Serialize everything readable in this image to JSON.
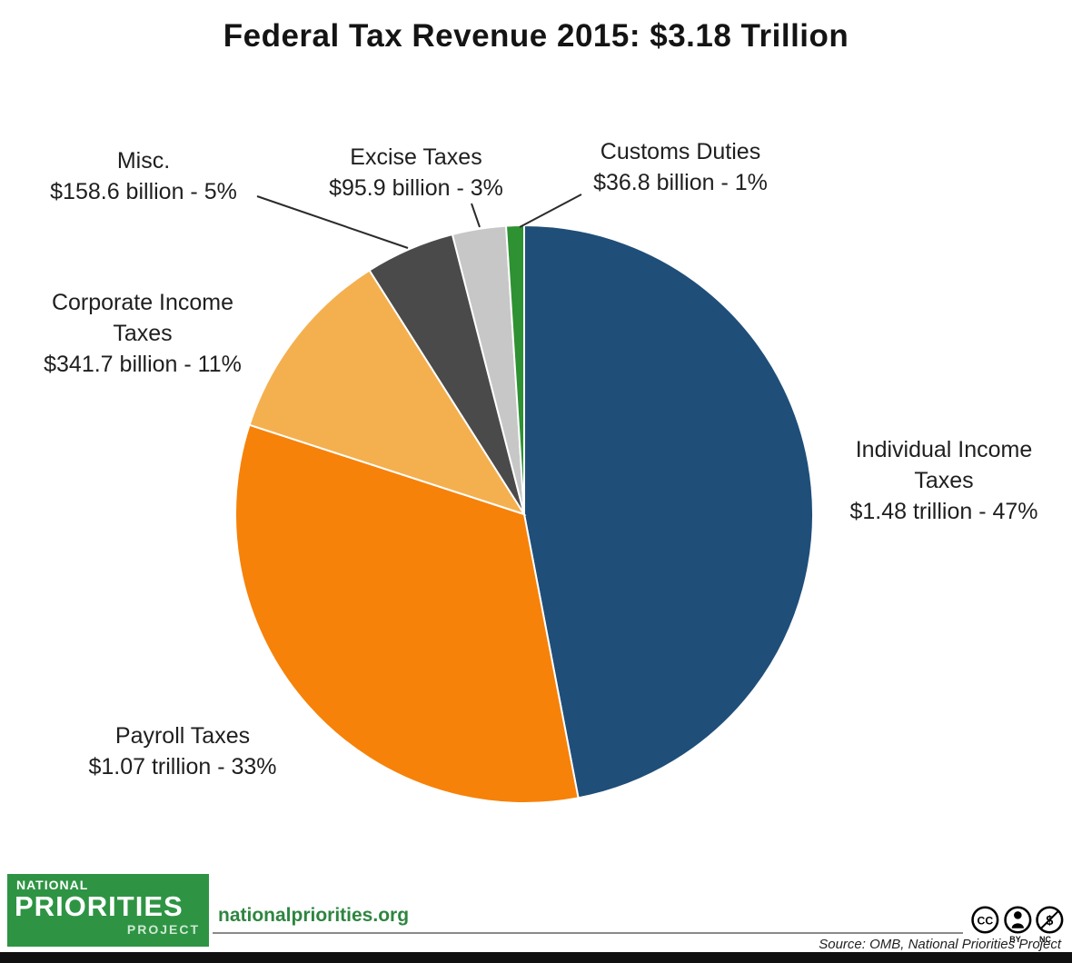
{
  "chart_data": {
    "type": "pie",
    "title": "Federal Tax Revenue 2015: $3.18 Trillion",
    "start_angle_deg": 0,
    "direction": "clockwise",
    "total_label": "$3.18 Trillion",
    "slices": [
      {
        "label": "Individual Income Taxes",
        "value_label": "$1.48 trillion - 47%",
        "percent": 47,
        "color": "#1F4E79"
      },
      {
        "label": "Payroll Taxes",
        "value_label": "$1.07 trillion - 33%",
        "percent": 33,
        "color": "#F6820A"
      },
      {
        "label": "Corporate Income Taxes",
        "value_label": "$341.7 billion - 11%",
        "percent": 11,
        "color": "#F4B04F"
      },
      {
        "label": "Misc.",
        "value_label": "$158.6 billion - 5%",
        "percent": 5,
        "color": "#4A4A4A"
      },
      {
        "label": "Excise Taxes",
        "value_label": "$95.9 billion - 3%",
        "percent": 3,
        "color": "#C7C7C7"
      },
      {
        "label": "Customs Duties",
        "value_label": "$36.8 billion - 1%",
        "percent": 1,
        "color": "#2E9132"
      }
    ],
    "legend_position": "outside-labels",
    "grid": false
  },
  "footer": {
    "logo": {
      "line1": "NATIONAL",
      "line2": "PRIORITIES",
      "line3": "PROJECT"
    },
    "website": "nationalpriorities.org",
    "source": "Source: OMB, National Priorities Project",
    "license_by": "BY",
    "license_nc": "NC"
  }
}
